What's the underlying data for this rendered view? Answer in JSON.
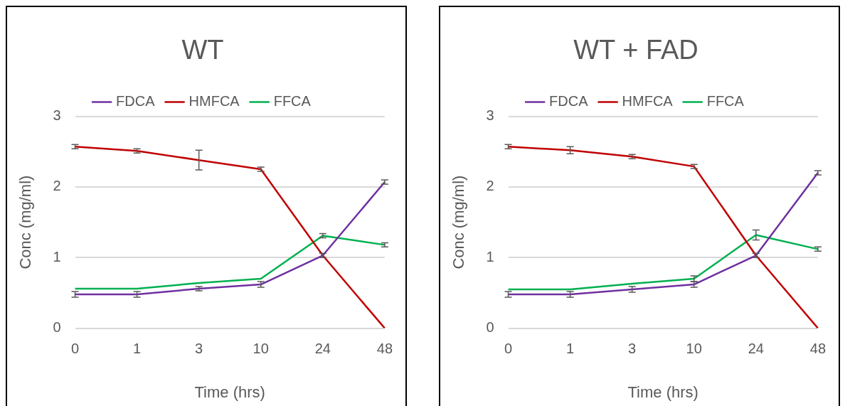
{
  "chart_data": [
    {
      "type": "line",
      "title": "WT",
      "xlabel": "Time (hrs)",
      "ylabel": "Conc (mg/ml)",
      "categories": [
        "0",
        "1",
        "3",
        "10",
        "24",
        "48"
      ],
      "ylim": [
        0,
        3
      ],
      "yticks": [
        0,
        1,
        2,
        3
      ],
      "grid": "y",
      "legend": "top",
      "line_style": "solid",
      "series": [
        {
          "name": "FDCA",
          "color": "#7030a0",
          "values": [
            0.48,
            0.48,
            0.56,
            0.62,
            1.03,
            2.07
          ],
          "errors": [
            0.04,
            0.04,
            0.03,
            0.04,
            0.03,
            0.03
          ]
        },
        {
          "name": "HMFCA",
          "color": "#c00000",
          "values": [
            2.57,
            2.51,
            2.38,
            2.25,
            1.03,
            0
          ],
          "errors": [
            0.03,
            0.03,
            0.14,
            0.03,
            null,
            null
          ]
        },
        {
          "name": "FFCA",
          "color": "#00b050",
          "values": [
            0.56,
            0.56,
            0.64,
            0.7,
            1.31,
            1.18
          ],
          "errors": [
            null,
            null,
            null,
            null,
            0.03,
            0.03
          ]
        }
      ]
    },
    {
      "type": "line",
      "title": "WT + FAD",
      "xlabel": "Time (hrs)",
      "ylabel": "Conc (mg/ml)",
      "categories": [
        "0",
        "1",
        "3",
        "10",
        "24",
        "48"
      ],
      "ylim": [
        0,
        3
      ],
      "yticks": [
        0,
        1,
        2,
        3
      ],
      "grid": "y",
      "legend": "top",
      "line_style": "solid",
      "series": [
        {
          "name": "FDCA",
          "color": "#7030a0",
          "values": [
            0.48,
            0.48,
            0.55,
            0.62,
            1.03,
            2.2
          ],
          "errors": [
            0.04,
            0.04,
            0.04,
            0.04,
            0.03,
            0.03
          ]
        },
        {
          "name": "HMFCA",
          "color": "#c00000",
          "values": [
            2.57,
            2.52,
            2.43,
            2.29,
            1.03,
            0
          ],
          "errors": [
            0.03,
            0.05,
            0.03,
            0.03,
            null,
            null
          ]
        },
        {
          "name": "FFCA",
          "color": "#00b050",
          "values": [
            0.55,
            0.55,
            0.63,
            0.7,
            1.32,
            1.12
          ],
          "errors": [
            null,
            null,
            null,
            0.04,
            0.07,
            0.03
          ]
        }
      ]
    }
  ]
}
